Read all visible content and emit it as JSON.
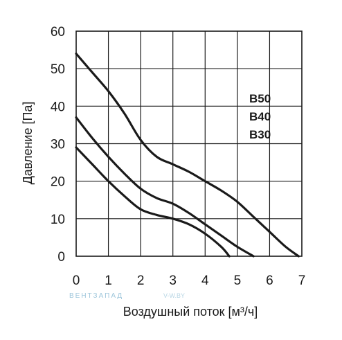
{
  "chart_data": {
    "type": "line",
    "xlabel": "Воздушный поток [м³/ч]",
    "ylabel": "Давление [Па]",
    "xlim": [
      0,
      7
    ],
    "ylim": [
      0,
      60
    ],
    "x_ticks": [
      "0",
      "1",
      "2",
      "3",
      "4",
      "5",
      "6",
      "7"
    ],
    "y_ticks": [
      "0",
      "10",
      "20",
      "30",
      "40",
      "50",
      "60"
    ],
    "grid": true,
    "legend_placement": "right",
    "series": [
      {
        "name": "B50",
        "x": [
          0,
          0.5,
          1,
          1.5,
          2,
          2.5,
          3,
          3.5,
          4,
          4.5,
          5,
          5.5,
          6,
          6.5,
          6.9
        ],
        "y": [
          54,
          49,
          44,
          38,
          31,
          26.5,
          24.5,
          22.5,
          20,
          17.5,
          14.5,
          10.5,
          6.5,
          2.5,
          0
        ]
      },
      {
        "name": "B40",
        "x": [
          0,
          0.5,
          1,
          1.5,
          2,
          2.5,
          3,
          3.5,
          4,
          4.5,
          5,
          5.5
        ],
        "y": [
          37,
          31.5,
          26.5,
          22,
          18,
          15.5,
          14,
          11.5,
          8.5,
          5.5,
          2.5,
          0
        ]
      },
      {
        "name": "B30",
        "x": [
          0,
          0.5,
          1,
          1.5,
          2,
          2.5,
          3,
          3.5,
          4,
          4.5,
          4.75
        ],
        "y": [
          29,
          24.5,
          20,
          16,
          12.5,
          11,
          10,
          8.5,
          6,
          2.5,
          0
        ]
      }
    ],
    "series_labels": [
      "B50",
      "B40",
      "B30"
    ]
  },
  "watermark": {
    "brand": "ВЕНТЗАПАД",
    "site": "V-W.BY"
  },
  "colors": {
    "line": "#1a1a1a",
    "watermark": "#9ec6db"
  }
}
